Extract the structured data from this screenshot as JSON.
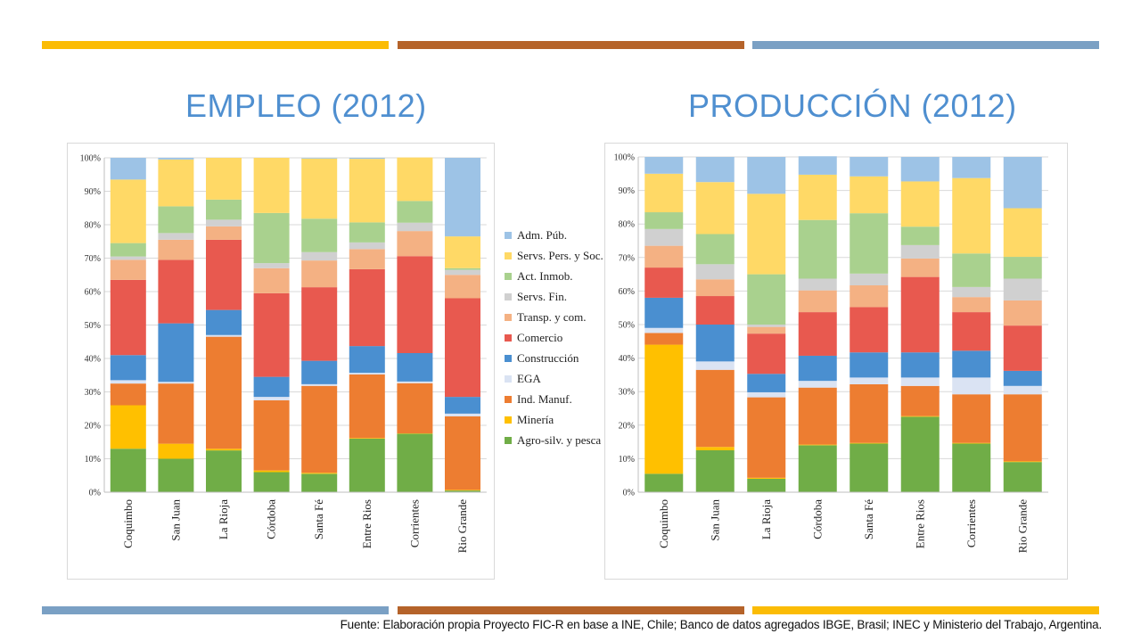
{
  "decor": {
    "top_bars": [
      "#fbbc05",
      "#b5632a",
      "#7aa0c4"
    ],
    "bottom_bars": [
      "#7aa0c4",
      "#b5632a",
      "#fbbc05"
    ]
  },
  "titles": {
    "left": "EMPLEO (2012)",
    "right": "PRODUCCIÓN (2012)"
  },
  "legend": [
    {
      "name": "Adm. Púb.",
      "color": "#9dc3e6"
    },
    {
      "name": "Servs. Pers. y Soc.",
      "color": "#ffd966"
    },
    {
      "name": "Act. Inmob.",
      "color": "#a9d18e"
    },
    {
      "name": "Servs. Fin.",
      "color": "#d0d0d0"
    },
    {
      "name": "Transp. y com.",
      "color": "#f4b183"
    },
    {
      "name": "Comercio",
      "color": "#e8594f"
    },
    {
      "name": "Construcción",
      "color": "#4a8fd0"
    },
    {
      "name": "EGA",
      "color": "#dae3f3"
    },
    {
      "name": "Ind. Manuf.",
      "color": "#ed7d31"
    },
    {
      "name": "Minería",
      "color": "#ffc000"
    },
    {
      "name": "Agro-silv. y pesca",
      "color": "#70ad47"
    }
  ],
  "source": "Fuente: Elaboración propia Proyecto FIC-R en base a INE, Chile; Banco de datos agregados IBGE, Brasil; INEC y Ministerio del Trabajo, Argentina.",
  "chart_data": [
    {
      "type": "bar",
      "stacked": true,
      "title": "EMPLEO (2012)",
      "categories": [
        "Coquimbo",
        "San Juan",
        "La Rioja",
        "Córdoba",
        "Santa Fé",
        "Entre Rios",
        "Corrientes",
        "Rio Grande"
      ],
      "y_ticks": [
        "0%",
        "10%",
        "20%",
        "30%",
        "40%",
        "50%",
        "60%",
        "70%",
        "80%",
        "90%",
        "100%"
      ],
      "ylim": [
        0,
        100
      ],
      "series": [
        {
          "name": "Agro-silv. y pesca",
          "values": [
            13,
            10,
            12.5,
            6,
            5.5,
            16,
            17.5,
            0.5
          ]
        },
        {
          "name": "Minería",
          "values": [
            13,
            4.5,
            0.5,
            0.5,
            0.3,
            0.2,
            0.1,
            0.2
          ]
        },
        {
          "name": "Ind. Manuf.",
          "values": [
            6.5,
            18,
            33.5,
            21,
            26,
            19,
            15,
            22
          ]
        },
        {
          "name": "EGA",
          "values": [
            1,
            0.5,
            0.5,
            1,
            0.5,
            0.5,
            0.5,
            0.8
          ]
        },
        {
          "name": "Construcción",
          "values": [
            7.5,
            17.5,
            7.5,
            6,
            7,
            8,
            8.5,
            5
          ]
        },
        {
          "name": "Comercio",
          "values": [
            22.5,
            19,
            21,
            25,
            22,
            23,
            29,
            29.5
          ]
        },
        {
          "name": "Transp. y com.",
          "values": [
            6,
            6,
            4,
            7.5,
            8,
            6,
            7.5,
            7
          ]
        },
        {
          "name": "Servs. Fin.",
          "values": [
            1,
            2,
            2,
            1.5,
            2.5,
            2,
            2.5,
            1.5
          ]
        },
        {
          "name": "Act. Inmob.",
          "values": [
            4,
            8,
            6,
            15,
            10,
            6,
            6.5,
            0.5
          ]
        },
        {
          "name": "Servs. Pers. y Soc.",
          "values": [
            19,
            14,
            12.5,
            16.5,
            18,
            19,
            13,
            9.5
          ]
        },
        {
          "name": "Adm. Púb.",
          "values": [
            6.5,
            0.5,
            0,
            0,
            0.2,
            0.3,
            0,
            23.5
          ]
        }
      ]
    },
    {
      "type": "bar",
      "stacked": true,
      "title": "PRODUCCIÓN (2012)",
      "categories": [
        "Coquimbo",
        "San Juan",
        "La Rioja",
        "Córdoba",
        "Santa Fé",
        "Entre Rios",
        "Corrientes",
        "Rio Grande"
      ],
      "y_ticks": [
        "0%",
        "10%",
        "20%",
        "30%",
        "40%",
        "50%",
        "60%",
        "70%",
        "80%",
        "90%",
        "100%"
      ],
      "ylim": [
        0,
        100
      ],
      "series": [
        {
          "name": "Agro-silv. y pesca",
          "values": [
            5.5,
            12.5,
            4,
            14,
            14.5,
            22.5,
            14.5,
            9
          ]
        },
        {
          "name": "Minería",
          "values": [
            38.5,
            1,
            0.3,
            0.2,
            0.2,
            0.2,
            0.2,
            0.2
          ]
        },
        {
          "name": "Ind. Manuf.",
          "values": [
            3.5,
            23,
            24,
            17,
            17.5,
            9,
            14.5,
            20
          ]
        },
        {
          "name": "EGA",
          "values": [
            1.5,
            2.5,
            1.5,
            2,
            2,
            2.5,
            5,
            2.5
          ]
        },
        {
          "name": "Construcción",
          "values": [
            9,
            11,
            5.5,
            7.5,
            7.5,
            7.5,
            8,
            4.5
          ]
        },
        {
          "name": "Comercio",
          "values": [
            9,
            8.5,
            12,
            13,
            13.5,
            22.5,
            11.5,
            13.5
          ]
        },
        {
          "name": "Transp. y com.",
          "values": [
            6.5,
            5,
            2,
            6.5,
            6.5,
            5.5,
            4.5,
            7.5
          ]
        },
        {
          "name": "Servs. Fin.",
          "values": [
            5,
            4.5,
            0.7,
            3.5,
            3.5,
            4,
            3,
            6.5
          ]
        },
        {
          "name": "Act. Inmob.",
          "values": [
            5,
            9,
            15,
            17.5,
            18,
            5.5,
            10,
            6.5
          ]
        },
        {
          "name": "Servs. Pers. y Soc.",
          "values": [
            11.5,
            15.5,
            24,
            13.5,
            11,
            13.5,
            22.5,
            14.5
          ]
        },
        {
          "name": "Adm. Púb.",
          "values": [
            5,
            7.5,
            11,
            5.5,
            5.8,
            7.3,
            6.3,
            15.3
          ]
        }
      ]
    }
  ]
}
